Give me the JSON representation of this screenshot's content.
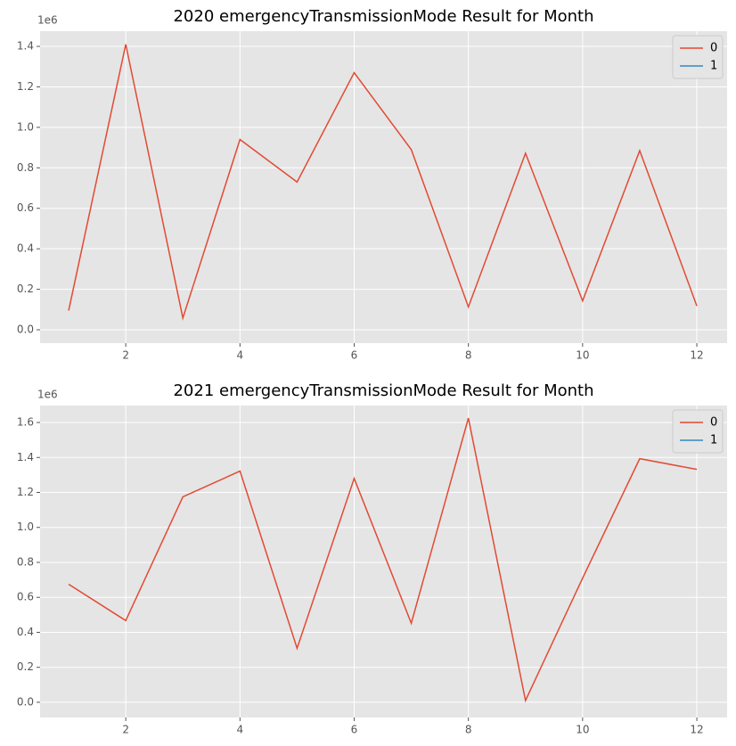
{
  "chart_data": [
    {
      "type": "line",
      "title": "2020 emergencyTransmissionMode Result for Month",
      "x": [
        1,
        2,
        3,
        4,
        5,
        6,
        7,
        8,
        9,
        10,
        11,
        12
      ],
      "series": [
        {
          "name": "0",
          "color": "#E24A33",
          "values": [
            0.095,
            1.41,
            0.058,
            0.94,
            0.73,
            1.27,
            0.89,
            0.113,
            0.872,
            0.143,
            0.885,
            0.118
          ]
        },
        {
          "name": "1",
          "color": "#348ABD",
          "values": [
            null,
            null,
            null,
            null,
            null,
            null,
            null,
            null,
            null,
            null,
            null,
            null
          ]
        }
      ],
      "xlim": [
        0.5,
        12.53
      ],
      "xticks": [
        2,
        4,
        6,
        8,
        10,
        12
      ],
      "ylim": [
        -0.066,
        1.475
      ],
      "yticks": [
        {
          "value": 0,
          "label": "0.0"
        },
        0.2,
        0.4,
        0.6,
        0.8,
        {
          "value": 1,
          "label": "1.0"
        },
        1.2,
        1.4
      ],
      "y_offset_label": "1e6",
      "grid": true,
      "legend": "upper right"
    },
    {
      "type": "line",
      "title": "2021 emergencyTransmissionMode Result for Month",
      "x": [
        1,
        2,
        3,
        4,
        5,
        6,
        7,
        8,
        9,
        10,
        11,
        12
      ],
      "series": [
        {
          "name": "0",
          "color": "#E24A33",
          "values": [
            0.675,
            0.467,
            1.175,
            1.322,
            0.309,
            1.28,
            0.452,
            1.625,
            0.01,
            0.71,
            1.393,
            1.332
          ]
        },
        {
          "name": "1",
          "color": "#348ABD",
          "values": [
            null,
            null,
            null,
            null,
            null,
            null,
            null,
            null,
            null,
            null,
            null,
            null
          ]
        }
      ],
      "xlim": [
        0.5,
        12.53
      ],
      "xticks": [
        2,
        4,
        6,
        8,
        10,
        12
      ],
      "ylim": [
        -0.087,
        1.697
      ],
      "yticks": [
        {
          "value": 0,
          "label": "0.0"
        },
        0.2,
        0.4,
        0.6,
        0.8,
        {
          "value": 1,
          "label": "1.0"
        },
        1.2,
        1.4,
        1.6
      ],
      "y_offset_label": "1e6",
      "grid": true,
      "legend": "upper right"
    }
  ]
}
